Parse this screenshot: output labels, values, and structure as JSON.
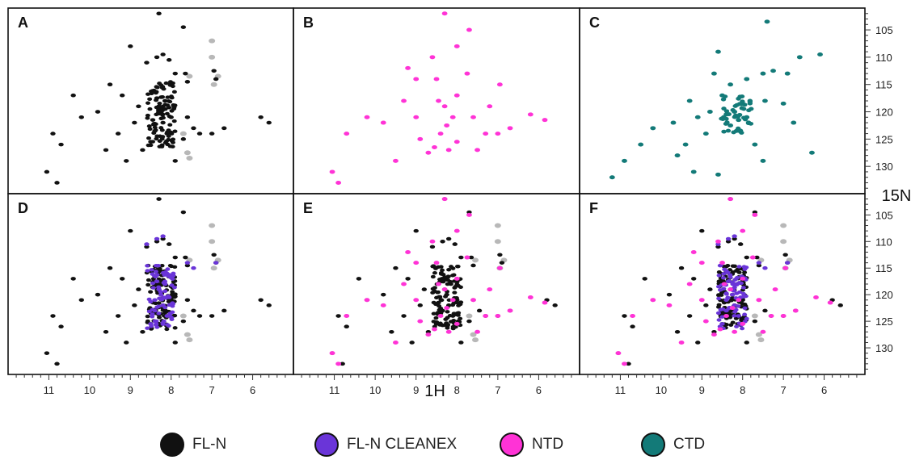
{
  "figure": {
    "x_axis_title": "1H",
    "y_axis_title": "15N"
  },
  "colors": {
    "FL-N": "#111111",
    "FL-N CLEANEX": "#6a35d8",
    "NTD": "#ff33d6",
    "CTD": "#137a78",
    "faint": "#b8b8b8"
  },
  "legend": [
    {
      "label": "FL-N",
      "color": "#111111"
    },
    {
      "label": "FL-N CLEANEX",
      "color": "#6a35d8"
    },
    {
      "label": "NTD",
      "color": "#ff33d6"
    },
    {
      "label": "CTD",
      "color": "#137a78"
    }
  ],
  "chart_data": {
    "type": "scatter",
    "x_label": "1H",
    "y_label": "15N",
    "x_range_ppm": [
      12,
      5
    ],
    "x_reversed": true,
    "y_range_ppm": [
      101,
      135
    ],
    "y_reversed": true,
    "x_ticks": [
      11,
      10,
      9,
      8,
      7,
      6
    ],
    "y_ticks": [
      105,
      110,
      115,
      120,
      125,
      130
    ],
    "panels": [
      {
        "letter": "A",
        "spectra": [
          "FL-N"
        ]
      },
      {
        "letter": "B",
        "spectra": [
          "NTD"
        ]
      },
      {
        "letter": "C",
        "spectra": [
          "CTD"
        ]
      },
      {
        "letter": "D",
        "spectra": [
          "FL-N",
          "FL-N CLEANEX"
        ]
      },
      {
        "letter": "E",
        "spectra": [
          "FL-N",
          "NTD"
        ]
      },
      {
        "letter": "F",
        "spectra": [
          "FL-N",
          "FL-N CLEANEX",
          "NTD"
        ]
      }
    ],
    "series": [
      {
        "name": "FL-N",
        "color": "#111111",
        "peaks": [
          [
            8.45,
            121.5
          ],
          [
            8.3,
            119
          ],
          [
            8.2,
            122
          ],
          [
            8.1,
            124
          ],
          [
            8.35,
            117.5
          ],
          [
            8.5,
            125.5
          ],
          [
            8.25,
            120
          ],
          [
            8.0,
            121
          ],
          [
            8.15,
            118
          ],
          [
            8.4,
            123.5
          ],
          [
            8.6,
            111
          ],
          [
            8.35,
            110
          ],
          [
            8.2,
            109.5
          ],
          [
            8.05,
            110.5
          ],
          [
            9.2,
            117
          ],
          [
            9.5,
            115
          ],
          [
            9.8,
            120
          ],
          [
            9.3,
            124
          ],
          [
            8.9,
            122
          ],
          [
            8.8,
            119
          ],
          [
            7.6,
            114.5
          ],
          [
            7.65,
            113
          ],
          [
            6.9,
            114
          ],
          [
            6.95,
            112.5
          ],
          [
            7.3,
            124
          ],
          [
            7.0,
            124
          ],
          [
            6.7,
            123
          ],
          [
            7.6,
            121
          ],
          [
            7.45,
            123
          ],
          [
            10.7,
            126
          ],
          [
            10.9,
            124
          ],
          [
            11.05,
            131
          ],
          [
            10.8,
            133
          ],
          [
            9.0,
            108
          ],
          [
            8.3,
            102
          ],
          [
            7.7,
            104.5
          ],
          [
            5.8,
            121
          ],
          [
            5.6,
            122
          ],
          [
            8.7,
            127
          ],
          [
            7.9,
            129
          ],
          [
            10.4,
            117
          ],
          [
            10.2,
            121
          ],
          [
            9.6,
            127
          ],
          [
            9.1,
            129
          ],
          [
            7.9,
            113
          ],
          [
            7.7,
            125
          ]
        ]
      },
      {
        "name": "FL-N CLEANEX",
        "color": "#6a35d8",
        "peaks": [
          [
            8.4,
            121
          ],
          [
            8.3,
            119
          ],
          [
            8.2,
            122
          ],
          [
            8.1,
            124
          ],
          [
            8.35,
            117.5
          ],
          [
            8.5,
            125.5
          ],
          [
            8.25,
            120
          ],
          [
            8.05,
            120.5
          ],
          [
            8.15,
            118
          ],
          [
            8.4,
            123
          ],
          [
            8.6,
            110.5
          ],
          [
            8.35,
            109.5
          ],
          [
            8.2,
            109
          ],
          [
            7.6,
            114
          ],
          [
            6.9,
            114
          ],
          [
            7.45,
            115
          ]
        ]
      },
      {
        "name": "NTD",
        "color": "#ff33d6",
        "peaks": [
          [
            8.3,
            102
          ],
          [
            8.0,
            108
          ],
          [
            8.6,
            110
          ],
          [
            7.7,
            105
          ],
          [
            7.75,
            113
          ],
          [
            6.95,
            115
          ],
          [
            8.3,
            119
          ],
          [
            8.1,
            121
          ],
          [
            8.25,
            122.5
          ],
          [
            8.4,
            124
          ],
          [
            8.55,
            126.5
          ],
          [
            8.0,
            117
          ],
          [
            8.45,
            118
          ],
          [
            9.0,
            114
          ],
          [
            9.3,
            118
          ],
          [
            9.0,
            121
          ],
          [
            8.9,
            125
          ],
          [
            9.5,
            129
          ],
          [
            9.8,
            122
          ],
          [
            10.2,
            121
          ],
          [
            10.7,
            124
          ],
          [
            11.05,
            131
          ],
          [
            10.9,
            133
          ],
          [
            7.3,
            124
          ],
          [
            7.0,
            124
          ],
          [
            6.7,
            123
          ],
          [
            7.6,
            121
          ],
          [
            6.2,
            120.5
          ],
          [
            5.85,
            121.5
          ],
          [
            7.5,
            127
          ],
          [
            7.2,
            119
          ],
          [
            8.0,
            125.5
          ],
          [
            8.2,
            127
          ],
          [
            8.7,
            127.5
          ],
          [
            9.2,
            112
          ],
          [
            8.5,
            114
          ]
        ]
      },
      {
        "name": "CTD",
        "color": "#137a78",
        "peaks": [
          [
            8.2,
            120
          ],
          [
            8.1,
            121.5
          ],
          [
            8.3,
            122.5
          ],
          [
            8.0,
            118.5
          ],
          [
            8.4,
            120.5
          ],
          [
            8.15,
            123.5
          ],
          [
            7.9,
            121
          ],
          [
            8.5,
            117
          ],
          [
            8.7,
            113
          ],
          [
            8.3,
            115
          ],
          [
            7.9,
            114
          ],
          [
            7.5,
            113
          ],
          [
            7.25,
            112.5
          ],
          [
            7.45,
            118
          ],
          [
            7.0,
            118.5
          ],
          [
            6.9,
            113
          ],
          [
            6.6,
            110
          ],
          [
            6.1,
            109.5
          ],
          [
            6.75,
            122
          ],
          [
            6.3,
            127.5
          ],
          [
            8.9,
            124
          ],
          [
            9.1,
            121
          ],
          [
            9.3,
            118
          ],
          [
            9.4,
            126
          ],
          [
            9.6,
            128
          ],
          [
            9.7,
            122
          ],
          [
            10.2,
            123
          ],
          [
            10.5,
            126
          ],
          [
            10.9,
            129
          ],
          [
            11.2,
            132
          ],
          [
            9.2,
            131
          ],
          [
            8.6,
            131.5
          ],
          [
            7.4,
            103.5
          ],
          [
            8.6,
            109
          ],
          [
            8.8,
            120
          ],
          [
            7.7,
            126
          ],
          [
            7.5,
            129
          ]
        ]
      },
      {
        "name": "faint",
        "color": "#b8b8b8",
        "peaks": [
          [
            7.55,
            113.5
          ],
          [
            6.85,
            113.5
          ],
          [
            7.0,
            110
          ],
          [
            7.6,
            127.5
          ],
          [
            7.55,
            128.5
          ],
          [
            7.0,
            107
          ],
          [
            6.95,
            115
          ],
          [
            7.7,
            124
          ]
        ]
      }
    ]
  }
}
